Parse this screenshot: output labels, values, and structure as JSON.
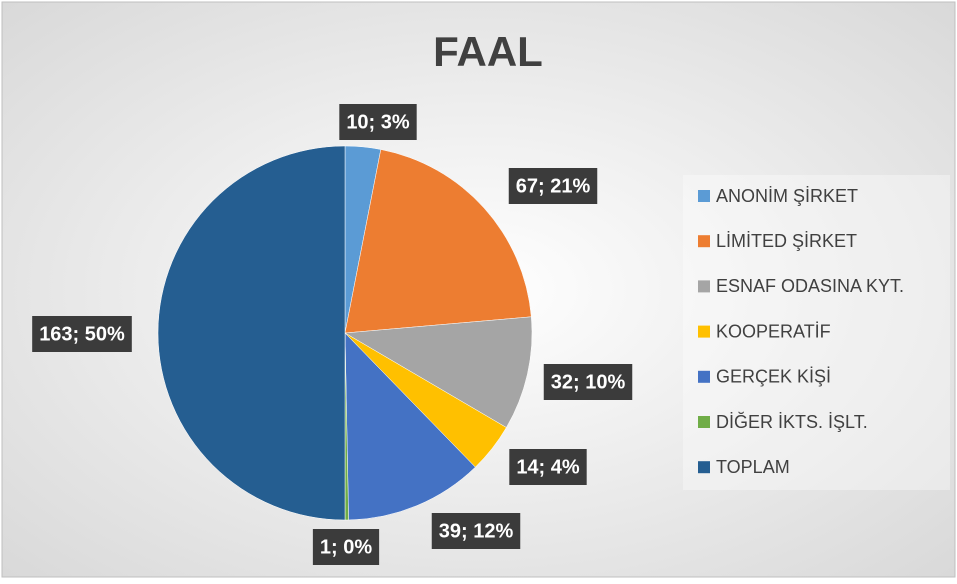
{
  "chart_data": {
    "type": "pie",
    "title": "FAAL",
    "categories": [
      "ANONİM ŞİRKET",
      "LİMİTED ŞİRKET",
      "ESNAF ODASINA KYT.",
      "KOOPERATİF",
      "GERÇEK KİŞİ",
      "DİĞER İKTS. İŞLT.",
      "TOPLAM"
    ],
    "values": [
      10,
      67,
      32,
      14,
      39,
      1,
      163
    ],
    "value_labels": [
      "10; 3%",
      "67; 21%",
      "32; 10%",
      "14; 4%",
      "39; 12%",
      "1; 0%",
      "163; 50%"
    ],
    "colors": [
      "#5b9bd5",
      "#ed7d31",
      "#a5a5a5",
      "#ffc000",
      "#4472c4",
      "#70ad47",
      "#255e91"
    ],
    "legend": "right"
  }
}
